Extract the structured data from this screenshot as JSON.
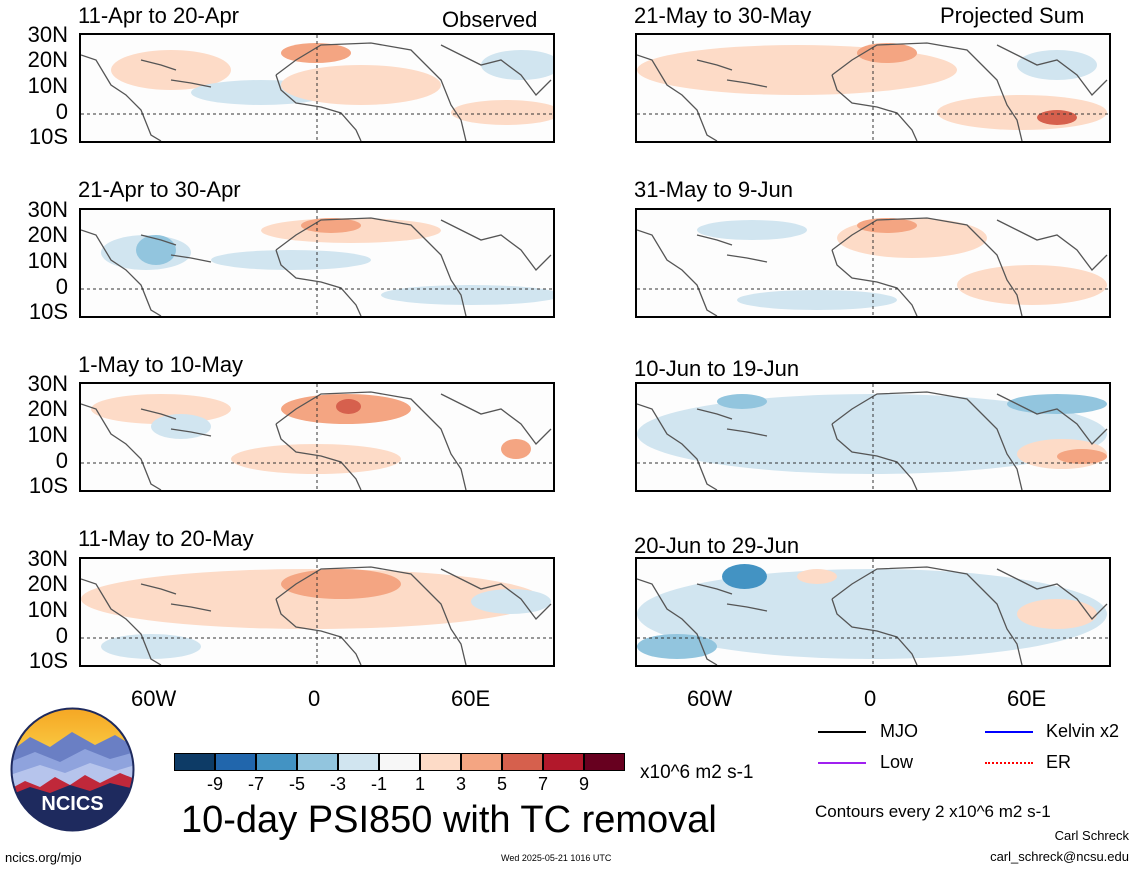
{
  "columns": {
    "left_header": "Observed",
    "right_header": "Projected Sum"
  },
  "panels": [
    {
      "id": "p1",
      "title": "11-Apr to 20-Apr",
      "col": "left",
      "row": 0
    },
    {
      "id": "p2",
      "title": "21-Apr to 30-Apr",
      "col": "left",
      "row": 1
    },
    {
      "id": "p3",
      "title": "1-May to 10-May",
      "col": "left",
      "row": 2
    },
    {
      "id": "p4",
      "title": "11-May to 20-May",
      "col": "left",
      "row": 3
    },
    {
      "id": "p5",
      "title": "21-May to 30-May",
      "col": "right",
      "row": 0
    },
    {
      "id": "p6",
      "title": "31-May to 9-Jun",
      "col": "right",
      "row": 1
    },
    {
      "id": "p7",
      "title": "10-Jun to 19-Jun",
      "col": "right",
      "row": 2
    },
    {
      "id": "p8",
      "title": "20-Jun to 29-Jun",
      "col": "right",
      "row": 3
    }
  ],
  "lat_labels": [
    "30N",
    "20N",
    "10N",
    "0",
    "10S"
  ],
  "lon_labels": [
    "60W",
    "0",
    "60E"
  ],
  "colorbar": {
    "colors": [
      "#0d3b66",
      "#2166ac",
      "#4393c3",
      "#92c5de",
      "#d1e5f0",
      "#f7f7f7",
      "#fddbc7",
      "#f4a582",
      "#d6604d",
      "#b2182b",
      "#67001f"
    ],
    "ticks": [
      "-9",
      "-7",
      "-5",
      "-3",
      "-1",
      "1",
      "3",
      "5",
      "7",
      "9"
    ],
    "units": "x10^6 m2 s-1"
  },
  "legend": {
    "mjo": {
      "label": "MJO",
      "color": "#000000"
    },
    "kelvin": {
      "label": "Kelvin x2",
      "color": "#0000ff"
    },
    "low": {
      "label": "Low",
      "color": "#a020f0"
    },
    "er": {
      "label": "ER",
      "color": "#ff0000"
    }
  },
  "main_title": "10-day PSI850 with TC removal",
  "contours_note": "Contours every 2 x10^6 m2 s-1",
  "author": "Carl Schreck",
  "email": "carl_schreck@ncsu.edu",
  "website": "ncics.org/mjo",
  "timestamp": "Wed 2025-05-21 1016 UTC",
  "logo_text": "NCICS"
}
